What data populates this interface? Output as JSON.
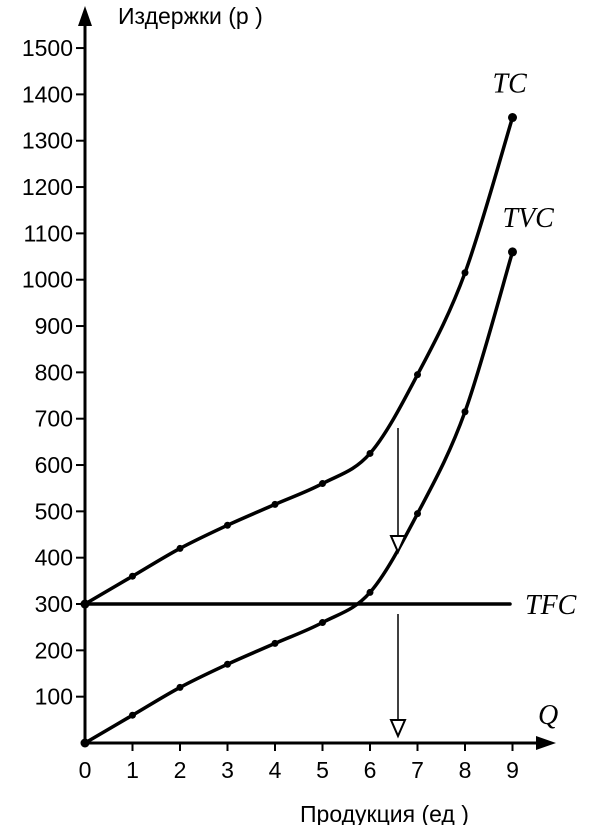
{
  "chart_data": {
    "type": "line",
    "ylabel": "Издержки (р )",
    "xlabel": "Продукция (ед )",
    "x_axis_symbol": "Q",
    "xlim": [
      0,
      9
    ],
    "ylim": [
      0,
      1500
    ],
    "x_ticks": [
      "0",
      "1",
      "2",
      "3",
      "4",
      "5",
      "6",
      "7",
      "8",
      "9"
    ],
    "y_ticks": [
      "100",
      "200",
      "300",
      "400",
      "500",
      "600",
      "700",
      "800",
      "900",
      "1000",
      "1100",
      "1200",
      "1300",
      "1400",
      "1500"
    ],
    "series": [
      {
        "name": "TC",
        "x": [
          0,
          1,
          2,
          3,
          4,
          5,
          6,
          7,
          8,
          9
        ],
        "y": [
          300,
          360,
          420,
          470,
          515,
          560,
          625,
          795,
          1015,
          1350
        ]
      },
      {
        "name": "TVC",
        "x": [
          0,
          1,
          2,
          3,
          4,
          5,
          6,
          7,
          8,
          9
        ],
        "y": [
          0,
          60,
          120,
          170,
          215,
          260,
          325,
          495,
          715,
          1060
        ]
      },
      {
        "name": "TFC",
        "x": [
          0,
          9
        ],
        "y": [
          300,
          300
        ]
      }
    ],
    "grid": false,
    "legend": "none"
  }
}
